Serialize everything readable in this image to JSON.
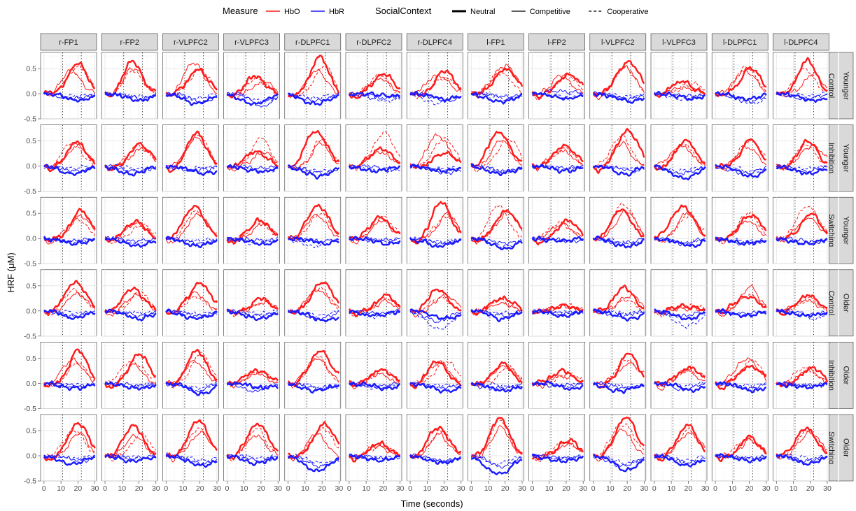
{
  "chart_data": {
    "type": "line",
    "title": "",
    "xlabel": "Time (seconds)",
    "ylabel": "HRF (μM)",
    "xlim": [
      -2,
      31
    ],
    "ylim": [
      -0.5,
      0.82
    ],
    "x_ticks": [
      0,
      10,
      20,
      30
    ],
    "x_tick_labels": [
      "0",
      "10",
      "20",
      "30"
    ],
    "y_ticks": [
      -0.5,
      0.0,
      0.5
    ],
    "y_tick_labels": [
      "-0.5",
      "0.0",
      "0.5"
    ],
    "vlines": [
      11,
      22
    ],
    "grid": true,
    "legend": {
      "position": "top",
      "measure_title": "Measure",
      "measure_items": [
        {
          "label": "HbO",
          "color": "#ff1a1a"
        },
        {
          "label": "HbR",
          "color": "#1a1aff"
        }
      ],
      "context_title": "SocialContext",
      "context_items": [
        {
          "label": "Neutral",
          "linetype": "thick"
        },
        {
          "label": "Competitive",
          "linetype": "solid"
        },
        {
          "label": "Cooperative",
          "linetype": "dashed"
        }
      ]
    },
    "columns": [
      "r-FP1",
      "r-FP2",
      "r-VLPFC2",
      "r-VLPFC3",
      "r-DLPFC1",
      "r-DLPFC2",
      "r-DLPFC4",
      "l-FP1",
      "l-FP2",
      "l-VLPFC2",
      "l-VLPFC3",
      "l-DLPFC1",
      "l-DLPFC4"
    ],
    "rows": [
      {
        "task": "Control",
        "group": "Younger"
      },
      {
        "task": "Inhibition",
        "group": "Younger"
      },
      {
        "task": "Switching",
        "group": "Younger"
      },
      {
        "task": "Control",
        "group": "Older"
      },
      {
        "task": "Inhibition",
        "group": "Older"
      },
      {
        "task": "Switching",
        "group": "Older"
      }
    ],
    "peaks_hbo": [
      [
        [
          0.6,
          0.45,
          0.55
        ],
        [
          0.65,
          0.5,
          0.45
        ],
        [
          0.5,
          0.6,
          0.45
        ],
        [
          0.35,
          0.25,
          0.3
        ],
        [
          0.75,
          0.45,
          0.55
        ],
        [
          0.4,
          0.3,
          0.35
        ],
        [
          0.45,
          0.35,
          0.3
        ],
        [
          0.5,
          0.55,
          0.4
        ],
        [
          0.4,
          0.35,
          0.4
        ],
        [
          0.65,
          0.55,
          0.5
        ],
        [
          0.25,
          0.15,
          0.2
        ],
        [
          0.5,
          0.45,
          0.55
        ],
        [
          0.65,
          0.4,
          0.5
        ]
      ],
      [
        [
          0.5,
          0.4,
          0.45
        ],
        [
          0.45,
          0.35,
          0.4
        ],
        [
          0.65,
          0.55,
          0.6
        ],
        [
          0.3,
          0.25,
          0.55
        ],
        [
          0.7,
          0.45,
          0.55
        ],
        [
          0.35,
          0.3,
          0.65
        ],
        [
          0.25,
          0.6,
          0.55
        ],
        [
          0.65,
          0.5,
          0.55
        ],
        [
          0.4,
          0.3,
          0.35
        ],
        [
          0.7,
          0.45,
          0.6
        ],
        [
          0.5,
          0.4,
          0.45
        ],
        [
          0.55,
          0.4,
          0.5
        ],
        [
          0.5,
          0.4,
          0.45
        ]
      ],
      [
        [
          0.55,
          0.45,
          0.4
        ],
        [
          0.35,
          0.3,
          0.25
        ],
        [
          0.65,
          0.5,
          0.55
        ],
        [
          0.35,
          0.3,
          0.35
        ],
        [
          0.65,
          0.45,
          0.5
        ],
        [
          0.4,
          0.35,
          0.45
        ],
        [
          0.75,
          0.5,
          0.45
        ],
        [
          0.55,
          0.5,
          0.65
        ],
        [
          0.35,
          0.3,
          0.3
        ],
        [
          0.6,
          0.55,
          0.7
        ],
        [
          0.65,
          0.5,
          0.45
        ],
        [
          0.45,
          0.35,
          0.5
        ],
        [
          0.5,
          0.4,
          0.65
        ]
      ],
      [
        [
          0.55,
          0.35,
          0.4
        ],
        [
          0.45,
          0.3,
          0.35
        ],
        [
          0.55,
          0.35,
          0.3
        ],
        [
          0.25,
          0.15,
          0.2
        ],
        [
          0.6,
          0.4,
          0.45
        ],
        [
          0.3,
          0.2,
          0.25
        ],
        [
          0.45,
          0.3,
          0.25
        ],
        [
          0.25,
          0.15,
          0.2
        ],
        [
          0.1,
          0.1,
          0.1
        ],
        [
          0.45,
          0.3,
          0.25
        ],
        [
          0.1,
          0.05,
          0.1
        ],
        [
          0.3,
          0.5,
          0.3
        ],
        [
          0.3,
          0.2,
          0.25
        ]
      ],
      [
        [
          0.65,
          0.45,
          0.4
        ],
        [
          0.6,
          0.35,
          0.45
        ],
        [
          0.65,
          0.45,
          0.6
        ],
        [
          0.25,
          0.2,
          0.25
        ],
        [
          0.65,
          0.5,
          0.55
        ],
        [
          0.3,
          0.2,
          0.25
        ],
        [
          0.45,
          0.4,
          0.45
        ],
        [
          0.4,
          0.35,
          0.3
        ],
        [
          0.25,
          0.15,
          0.2
        ],
        [
          0.6,
          0.4,
          0.45
        ],
        [
          0.3,
          0.25,
          0.25
        ],
        [
          0.35,
          0.5,
          0.45
        ],
        [
          0.3,
          0.25,
          0.3
        ]
      ],
      [
        [
          0.65,
          0.45,
          0.55
        ],
        [
          0.6,
          0.4,
          0.45
        ],
        [
          0.7,
          0.45,
          0.55
        ],
        [
          0.65,
          0.4,
          0.55
        ],
        [
          0.65,
          0.45,
          0.55
        ],
        [
          0.25,
          0.2,
          0.2
        ],
        [
          0.55,
          0.45,
          0.5
        ],
        [
          0.75,
          0.55,
          0.7
        ],
        [
          0.3,
          0.25,
          0.3
        ],
        [
          0.75,
          0.55,
          0.65
        ],
        [
          0.6,
          0.45,
          0.5
        ],
        [
          0.4,
          0.3,
          0.35
        ],
        [
          0.55,
          0.45,
          0.5
        ]
      ]
    ],
    "troughs_hbr": [
      [
        [
          -0.15,
          -0.1,
          -0.05
        ],
        [
          -0.15,
          -0.1,
          -0.05
        ],
        [
          -0.2,
          -0.15,
          -0.1
        ],
        [
          -0.2,
          -0.25,
          -0.15
        ],
        [
          -0.2,
          -0.15,
          -0.1
        ],
        [
          -0.05,
          -0.1,
          -0.15
        ],
        [
          -0.1,
          -0.15,
          -0.2
        ],
        [
          -0.15,
          -0.05,
          -0.1
        ],
        [
          -0.1,
          0.05,
          -0.05
        ],
        [
          -0.15,
          -0.1,
          -0.05
        ],
        [
          -0.1,
          -0.05,
          -0.1
        ],
        [
          -0.1,
          -0.15,
          -0.2
        ],
        [
          -0.15,
          -0.1,
          -0.05
        ]
      ],
      [
        [
          -0.15,
          -0.1,
          -0.05
        ],
        [
          -0.15,
          -0.1,
          -0.05
        ],
        [
          -0.15,
          -0.1,
          -0.05
        ],
        [
          -0.1,
          -0.05,
          -0.1
        ],
        [
          -0.2,
          -0.15,
          -0.1
        ],
        [
          -0.1,
          -0.05,
          -0.1
        ],
        [
          -0.1,
          -0.15,
          -0.05
        ],
        [
          -0.15,
          -0.1,
          -0.1
        ],
        [
          -0.1,
          -0.05,
          -0.05
        ],
        [
          -0.15,
          -0.1,
          -0.05
        ],
        [
          -0.25,
          -0.15,
          -0.1
        ],
        [
          -0.2,
          -0.15,
          -0.1
        ],
        [
          -0.15,
          -0.1,
          -0.05
        ]
      ],
      [
        [
          -0.1,
          -0.05,
          -0.05
        ],
        [
          -0.15,
          -0.05,
          -0.1
        ],
        [
          -0.15,
          -0.1,
          -0.05
        ],
        [
          -0.1,
          -0.05,
          -0.1
        ],
        [
          -0.1,
          -0.05,
          -0.15
        ],
        [
          -0.1,
          -0.05,
          -0.05
        ],
        [
          -0.15,
          -0.1,
          -0.05
        ],
        [
          -0.2,
          -0.1,
          -0.15
        ],
        [
          -0.05,
          -0.05,
          -0.05
        ],
        [
          -0.15,
          -0.1,
          -0.1
        ],
        [
          -0.15,
          -0.1,
          -0.1
        ],
        [
          -0.1,
          -0.1,
          -0.05
        ],
        [
          -0.1,
          -0.05,
          -0.1
        ]
      ],
      [
        [
          -0.15,
          -0.1,
          -0.05
        ],
        [
          -0.15,
          -0.1,
          -0.05
        ],
        [
          -0.15,
          -0.1,
          -0.05
        ],
        [
          -0.15,
          -0.1,
          -0.05
        ],
        [
          -0.2,
          -0.15,
          -0.1
        ],
        [
          -0.1,
          -0.05,
          -0.1
        ],
        [
          -0.15,
          -0.2,
          -0.35
        ],
        [
          -0.15,
          -0.1,
          -0.05
        ],
        [
          -0.1,
          -0.05,
          -0.05
        ],
        [
          -0.15,
          -0.1,
          -0.05
        ],
        [
          -0.15,
          -0.1,
          -0.3
        ],
        [
          -0.1,
          -0.05,
          -0.1
        ],
        [
          -0.1,
          -0.05,
          -0.15
        ]
      ],
      [
        [
          -0.1,
          -0.05,
          -0.05
        ],
        [
          -0.1,
          -0.05,
          -0.05
        ],
        [
          -0.2,
          -0.15,
          -0.1
        ],
        [
          -0.1,
          -0.15,
          -0.05
        ],
        [
          -0.15,
          -0.1,
          -0.1
        ],
        [
          -0.1,
          -0.05,
          -0.1
        ],
        [
          -0.15,
          -0.1,
          -0.05
        ],
        [
          -0.15,
          -0.1,
          -0.05
        ],
        [
          -0.1,
          -0.05,
          -0.05
        ],
        [
          -0.15,
          -0.1,
          -0.05
        ],
        [
          -0.15,
          -0.1,
          -0.05
        ],
        [
          -0.15,
          -0.1,
          -0.05
        ],
        [
          -0.1,
          -0.05,
          -0.05
        ]
      ],
      [
        [
          -0.15,
          -0.1,
          -0.05
        ],
        [
          -0.1,
          -0.05,
          -0.05
        ],
        [
          -0.2,
          -0.15,
          -0.1
        ],
        [
          -0.15,
          -0.1,
          -0.05
        ],
        [
          -0.3,
          -0.2,
          -0.15
        ],
        [
          -0.1,
          -0.05,
          -0.05
        ],
        [
          -0.15,
          -0.1,
          -0.1
        ],
        [
          -0.35,
          -0.2,
          -0.15
        ],
        [
          -0.1,
          -0.05,
          -0.05
        ],
        [
          -0.3,
          -0.2,
          -0.15
        ],
        [
          -0.2,
          -0.15,
          -0.1
        ],
        [
          -0.1,
          -0.05,
          -0.05
        ],
        [
          -0.15,
          -0.1,
          -0.05
        ]
      ]
    ],
    "peak_time": 19
  }
}
